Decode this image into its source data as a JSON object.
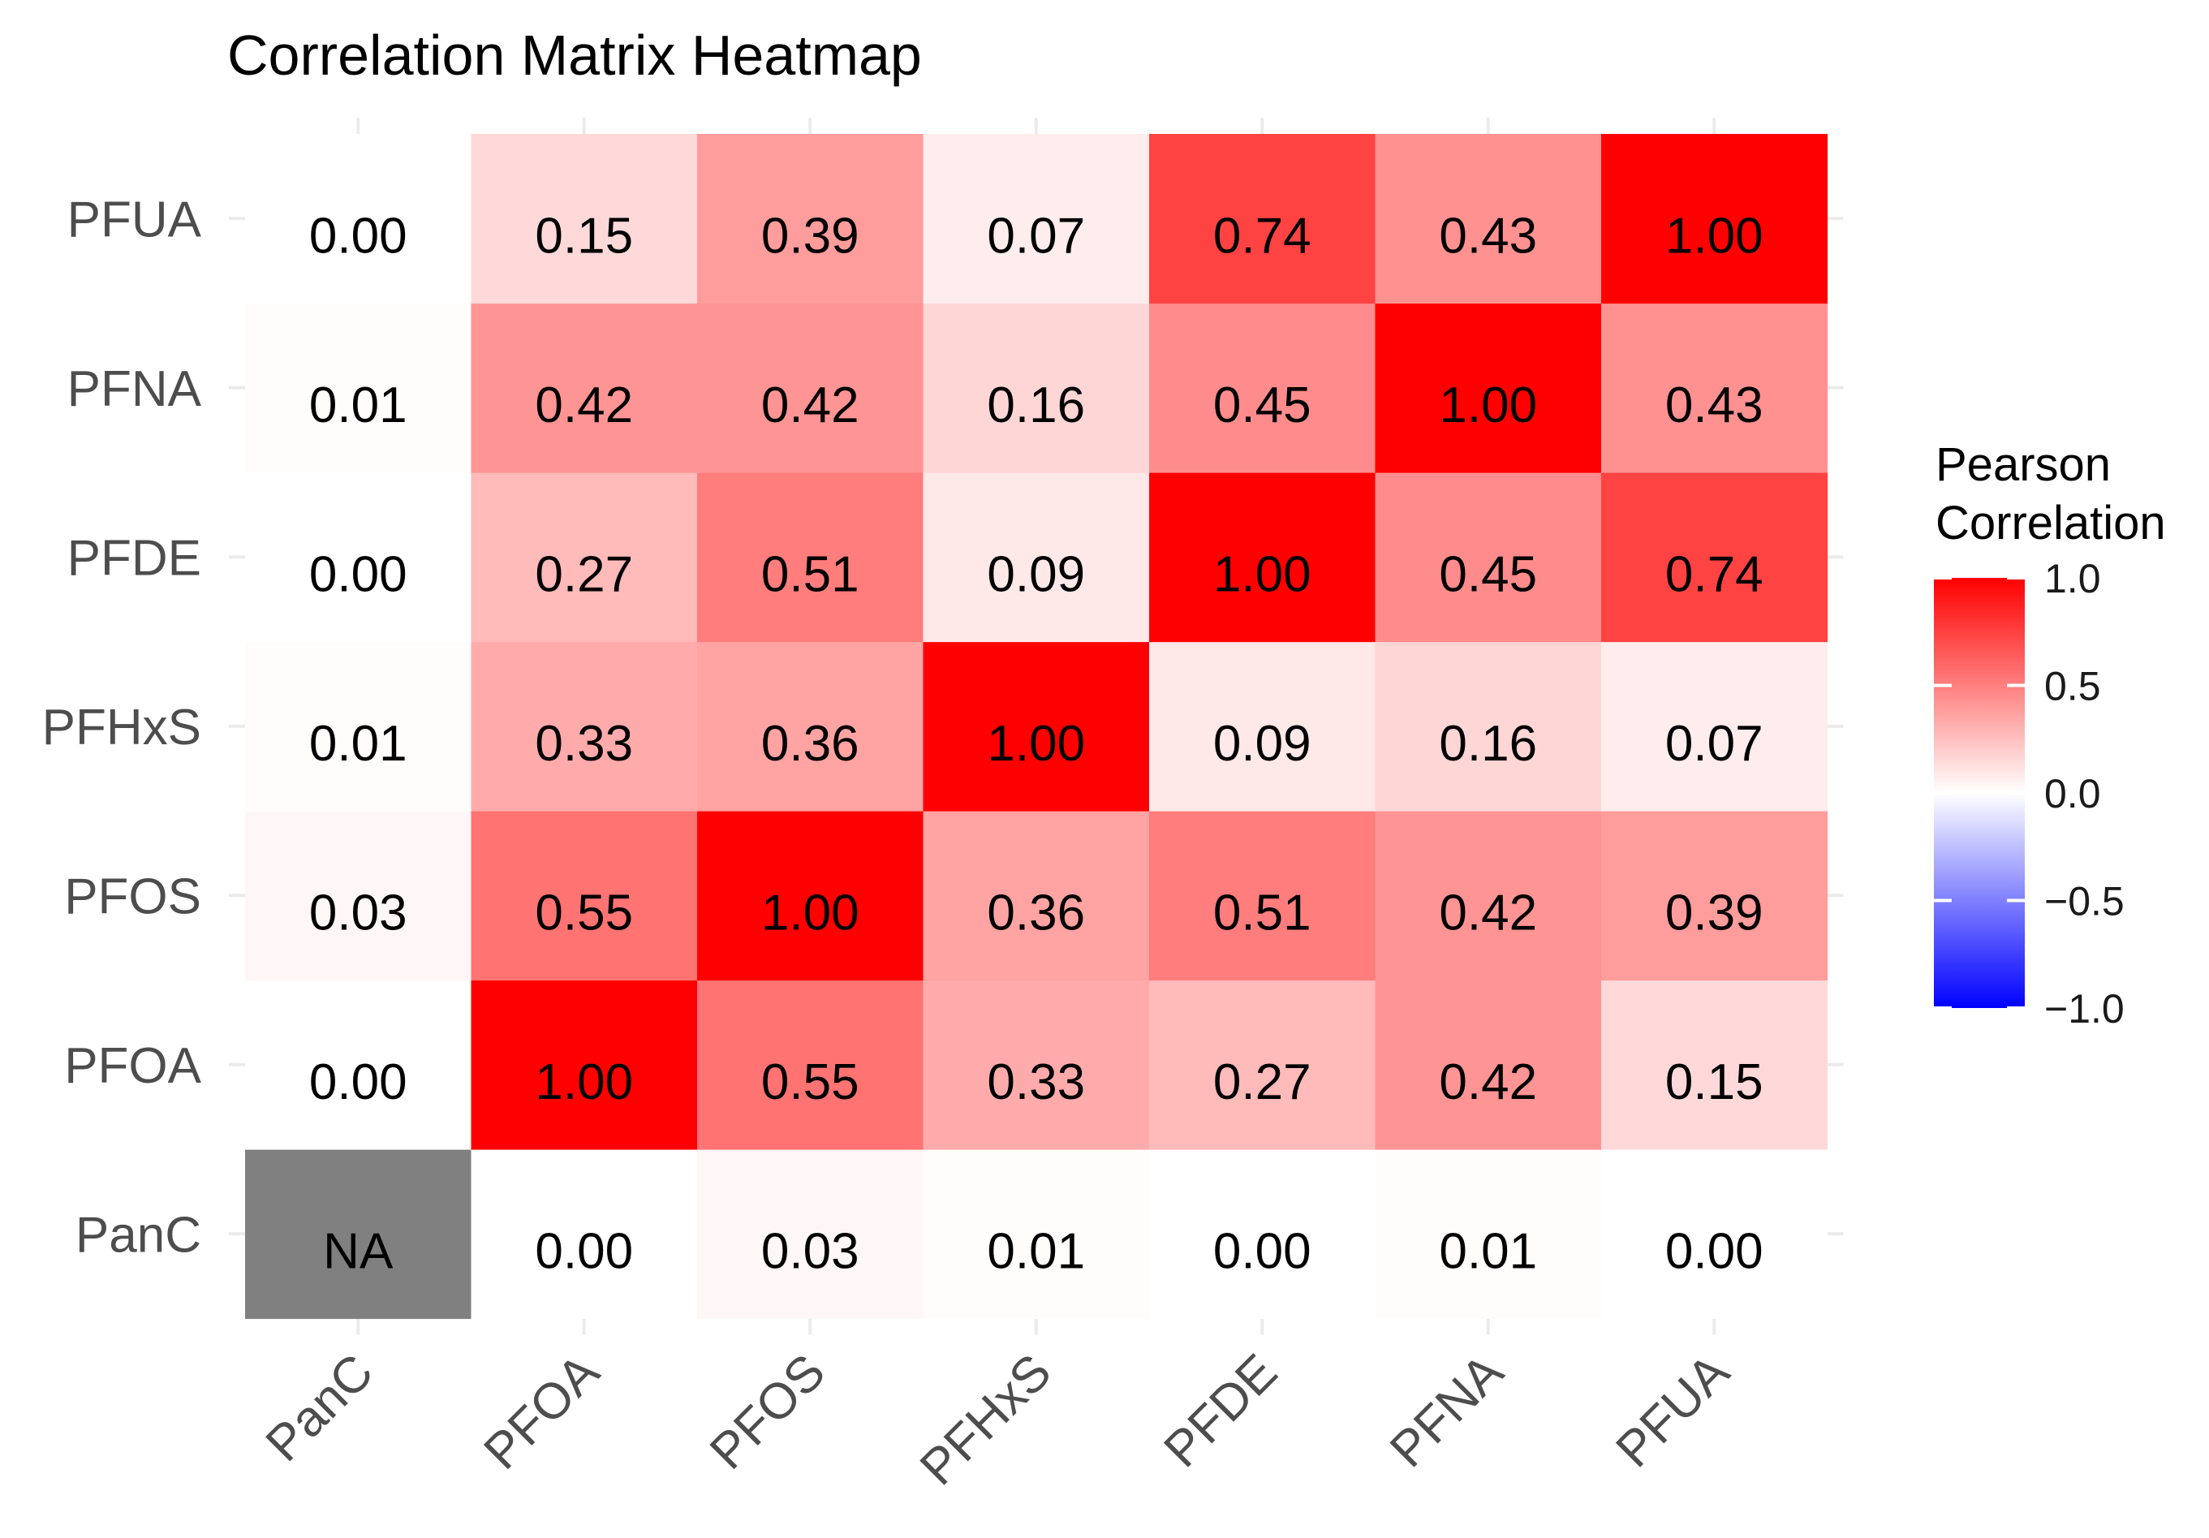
{
  "chart_data": {
    "type": "heatmap",
    "title": "Correlation Matrix Heatmap",
    "x_categories": [
      "PanC",
      "PFOA",
      "PFOS",
      "PFHxS",
      "PFDE",
      "PFNA",
      "PFUA"
    ],
    "y_categories": [
      "PanC",
      "PFOA",
      "PFOS",
      "PFHxS",
      "PFDE",
      "PFNA",
      "PFUA"
    ],
    "values": [
      [
        null,
        0.0,
        0.03,
        0.01,
        0.0,
        0.01,
        0.0
      ],
      [
        0.0,
        1.0,
        0.55,
        0.33,
        0.27,
        0.42,
        0.15
      ],
      [
        0.03,
        0.55,
        1.0,
        0.36,
        0.51,
        0.42,
        0.39
      ],
      [
        0.01,
        0.33,
        0.36,
        1.0,
        0.09,
        0.16,
        0.07
      ],
      [
        0.0,
        0.27,
        0.51,
        0.09,
        1.0,
        0.45,
        0.74
      ],
      [
        0.01,
        0.42,
        0.42,
        0.16,
        0.45,
        1.0,
        0.43
      ],
      [
        0.0,
        0.15,
        0.39,
        0.07,
        0.74,
        0.43,
        1.0
      ]
    ],
    "na_label": "NA",
    "na_color": "#808080",
    "color_scale": {
      "low": "#0000ff",
      "mid": "#ffffff",
      "high": "#ff0000",
      "limits": [
        -1.0,
        1.0
      ]
    },
    "legend": {
      "title_lines": [
        "Pearson",
        "Correlation"
      ],
      "ticks": [
        1.0,
        0.5,
        0.0,
        -0.5,
        -1.0
      ],
      "tick_labels": [
        "1.0",
        "0.5",
        "0.0",
        "−0.5",
        "−1.0"
      ],
      "placement": "right"
    }
  }
}
